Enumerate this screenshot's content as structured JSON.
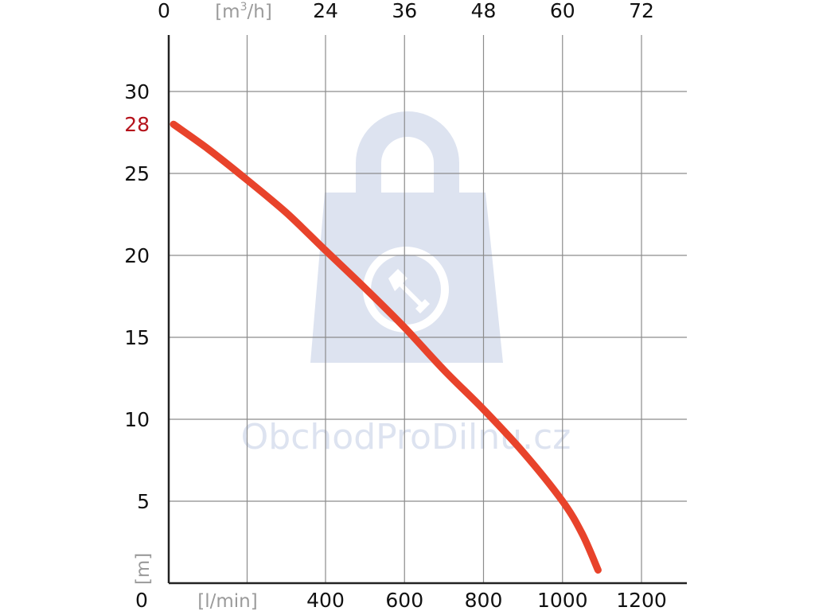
{
  "watermark": {
    "text": "ObchodProDilnu.cz",
    "icon": "shopping-bag-wrench-icon",
    "color": "#dde3f0"
  },
  "chart_data": {
    "type": "line",
    "title": "",
    "xlabel": "[l/min]",
    "ylabel": "[m]",
    "x2label_prefix": "[m",
    "x2label_sup": "3",
    "x2label_suffix": "/h]",
    "xlim": [
      0,
      1200
    ],
    "ylim": [
      0,
      30
    ],
    "x_ticks": [
      400,
      600,
      800,
      1000,
      1200
    ],
    "x_origin_label": "0",
    "x2_ticks": [
      24,
      36,
      48,
      60,
      72
    ],
    "x2_origin_label": "0",
    "y_ticks": [
      5,
      10,
      15,
      20,
      25,
      30
    ],
    "y_origin_label": "0",
    "highlight_y": 28,
    "highlight_y_label": "28",
    "grid": true,
    "line_color": "#e8432b",
    "highlight_color": "#b5121b",
    "series": [
      {
        "values_x": [
          0,
          100,
          200,
          300,
          400,
          500,
          600,
          700,
          800,
          900,
          1000,
          1050,
          1090
        ],
        "values_y": [
          28,
          26.5,
          24.6,
          22.6,
          20.3,
          18.0,
          15.6,
          13.0,
          10.6,
          8.0,
          5.0,
          3.0,
          0.8
        ]
      }
    ]
  }
}
